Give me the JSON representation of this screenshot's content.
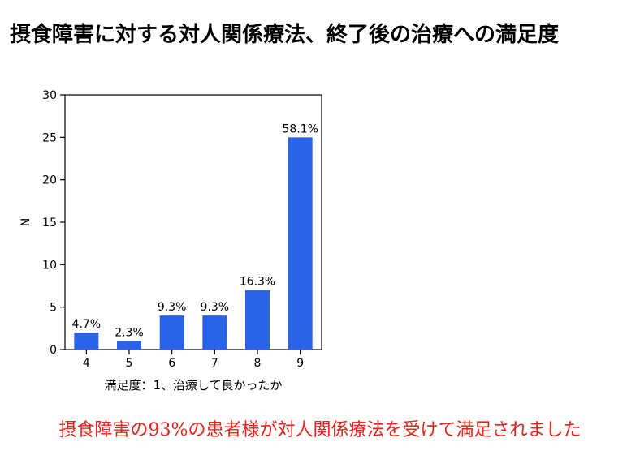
{
  "page": {
    "title": "摂食障害に対する対人関係療法、終了後の治療への満足度",
    "conclusion": "摂食障害の93%の患者様が対人関係療法を受けて満足されました"
  },
  "chart_data": {
    "type": "bar",
    "categories": [
      "4",
      "5",
      "6",
      "7",
      "8",
      "9"
    ],
    "values": [
      2,
      1,
      4,
      4,
      7,
      25
    ],
    "data_labels": [
      "4.7%",
      "2.3%",
      "9.3%",
      "9.3%",
      "16.3%",
      "58.1%"
    ],
    "xlabel": "満足度：1、治療して良かったか",
    "ylabel": "N",
    "ylim": [
      0,
      30
    ],
    "yticks": [
      0,
      5,
      10,
      15,
      20,
      25,
      30
    ],
    "bar_color": "#2a62e8",
    "grid": false,
    "legend": "none"
  }
}
